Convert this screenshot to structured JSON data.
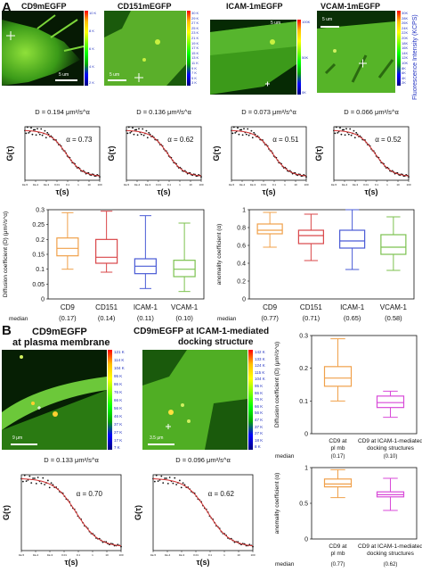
{
  "panel_a": {
    "letter": "A",
    "images": [
      {
        "title": "CD9mEGFP",
        "scalebar": "5 um",
        "cbar": [
          "10 K",
          "8 K",
          "6 K",
          "4 K",
          "2 K"
        ]
      },
      {
        "title": "CD151mEGFP",
        "scalebar": "5 um",
        "cbar": [
          "30 K",
          "29 K",
          "27 K",
          "25 K",
          "23 K",
          "21 K",
          "19 K",
          "17 K",
          "15 K",
          "13 K",
          "11 K",
          "9 K",
          "7 K",
          "5 K",
          "3 K"
        ]
      },
      {
        "title": "ICAM-1mEGFP",
        "scalebar": "5 um",
        "cbar": [
          "100K",
          "50K",
          "0K"
        ]
      },
      {
        "title": "VCAM-1mEGFP",
        "scalebar": "5 um",
        "cbar": [
          "30K",
          "28K",
          "26K",
          "24K",
          "22K",
          "20K",
          "18K",
          "16K",
          "14K",
          "12K",
          "10K",
          "8K",
          "6K",
          "4K",
          "2K"
        ]
      }
    ],
    "cbar_axis_label": "Fluorescence Intensity (KCPS)",
    "fcs_curves": [
      {
        "D": "D = 0.194 μm²/s^α",
        "alpha": "α = 0.73"
      },
      {
        "D": "D = 0.136 μm²/s^α",
        "alpha": "α = 0.62"
      },
      {
        "D": "D = 0.073 μm²/s^α",
        "alpha": "α = 0.51"
      },
      {
        "D": "D = 0.066 μm²/s^α",
        "alpha": "α = 0.52"
      }
    ],
    "fcs_ylabel": "G(τ)",
    "fcs_xlabel": "τ(s)",
    "fcs_xticks": [
      "1E-5",
      "1E-4",
      "1E-3",
      "0.01",
      "0.1",
      "1",
      "10",
      "100"
    ]
  },
  "panel_b": {
    "letter": "B",
    "images": [
      {
        "title_line1": "CD9mEGFP",
        "title_line2": "at plasma membrane",
        "scalebar": "9 μm",
        "cbar": [
          "121 K",
          "114 K",
          "104 K",
          "95 K",
          "86 K",
          "76 K",
          "66 K",
          "56 K",
          "46 K",
          "37 K",
          "27 K",
          "17 K",
          "7 K"
        ]
      },
      {
        "title_line1": "CD9mEGFP at ICAM-1-mediated",
        "title_line2": "docking structure",
        "scalebar": "3.5 μm",
        "cbar": [
          "142 K",
          "133 K",
          "124 K",
          "115 K",
          "104 K",
          "95 K",
          "86 K",
          "76 K",
          "66 K",
          "56 K",
          "47 K",
          "37 K",
          "27 K",
          "18 K",
          "8 K"
        ]
      }
    ],
    "fcs_curves": [
      {
        "D": "D = 0.133 μm²/s^α",
        "alpha": "α = 0.70"
      },
      {
        "D": "D = 0.096 μm²/s^α",
        "alpha": "α = 0.62"
      }
    ]
  },
  "chart_data": [
    {
      "type": "box",
      "id": "A-diffusion",
      "ylabel": "Diffusion coefficient (D) (μm²/s^α)",
      "ylim": [
        0,
        0.3
      ],
      "yticks": [
        "0",
        "0.05",
        "0.1",
        "0.15",
        "0.2",
        "0.25",
        "0.3"
      ],
      "categories": [
        "CD9",
        "CD151",
        "ICAM-1",
        "VCAM-1"
      ],
      "medians_text": [
        "(0.17)",
        "(0.14)",
        "(0.11)",
        "(0.10)"
      ],
      "median_label": "median",
      "colors": [
        "#f0a04a",
        "#d9474a",
        "#4a5bd6",
        "#7cc24f"
      ],
      "boxes": [
        {
          "min": 0.1,
          "q1": 0.145,
          "median": 0.17,
          "q3": 0.205,
          "max": 0.29
        },
        {
          "min": 0.09,
          "q1": 0.12,
          "median": 0.14,
          "q3": 0.2,
          "max": 0.295
        },
        {
          "min": 0.035,
          "q1": 0.085,
          "median": 0.11,
          "q3": 0.135,
          "max": 0.28
        },
        {
          "min": 0.025,
          "q1": 0.075,
          "median": 0.1,
          "q3": 0.13,
          "max": 0.255
        }
      ]
    },
    {
      "type": "box",
      "id": "A-anomaly",
      "ylabel": "anomality coefficient (α)",
      "ylim": [
        0,
        1.0
      ],
      "yticks": [
        "0",
        "0.2",
        "0.4",
        "0.6",
        "0.8",
        "1"
      ],
      "categories": [
        "CD9",
        "CD151",
        "ICAM-1",
        "VCAM-1"
      ],
      "medians_text": [
        "(0.77)",
        "(0.71)",
        "(0.65)",
        "(0.58)"
      ],
      "median_label": "median",
      "colors": [
        "#f0a04a",
        "#d9474a",
        "#4a5bd6",
        "#7cc24f"
      ],
      "boxes": [
        {
          "min": 0.58,
          "q1": 0.73,
          "median": 0.77,
          "q3": 0.84,
          "max": 0.97
        },
        {
          "min": 0.43,
          "q1": 0.62,
          "median": 0.71,
          "q3": 0.77,
          "max": 0.95
        },
        {
          "min": 0.33,
          "q1": 0.57,
          "median": 0.65,
          "q3": 0.77,
          "max": 1.0
        },
        {
          "min": 0.32,
          "q1": 0.5,
          "median": 0.58,
          "q3": 0.72,
          "max": 0.92
        }
      ]
    },
    {
      "type": "box",
      "id": "B-diffusion",
      "ylabel": "Diffusion coefficient (D) (μm²/s^α)",
      "ylim": [
        0,
        0.3
      ],
      "yticks": [
        "0",
        "0.1",
        "0.2",
        "0.3"
      ],
      "categories": [
        "CD9 at\npl mb",
        "CD9 at ICAM-1-mediated\ndocking structures"
      ],
      "medians_text": [
        "(0.17)",
        "(0.10)"
      ],
      "median_label": "median",
      "colors": [
        "#f0a04a",
        "#d84ad8"
      ],
      "boxes": [
        {
          "min": 0.1,
          "q1": 0.145,
          "median": 0.17,
          "q3": 0.205,
          "max": 0.29
        },
        {
          "min": 0.05,
          "q1": 0.08,
          "median": 0.095,
          "q3": 0.115,
          "max": 0.13
        }
      ]
    },
    {
      "type": "box",
      "id": "B-anomaly",
      "ylabel": "anomality coefficient (α)",
      "ylim": [
        0,
        1.0
      ],
      "yticks": [
        "0",
        "0.5",
        "1"
      ],
      "categories": [
        "CD9 at\npl mb",
        "CD9 at ICAM-1-mediated\ndocking structures"
      ],
      "medians_text": [
        "(0.77)",
        "(0.62)"
      ],
      "median_label": "median",
      "colors": [
        "#f0a04a",
        "#d84ad8"
      ],
      "boxes": [
        {
          "min": 0.58,
          "q1": 0.73,
          "median": 0.77,
          "q3": 0.84,
          "max": 0.97
        },
        {
          "min": 0.4,
          "q1": 0.59,
          "median": 0.62,
          "q3": 0.66,
          "max": 0.85
        }
      ]
    }
  ]
}
